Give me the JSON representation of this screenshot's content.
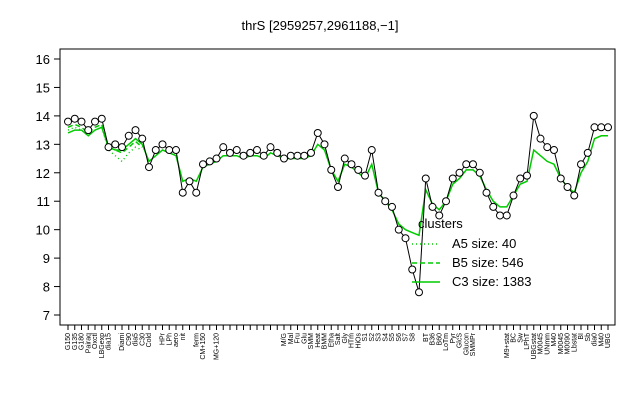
{
  "chart_data": {
    "type": "line",
    "title": "thrS [2959257,2961188,−1]",
    "categories": [
      "G150",
      "G135",
      "G180",
      "Pairaq",
      "Oxctl",
      "LBGexp",
      "dia15",
      null,
      "Diami",
      "C90",
      "dia5",
      "C30",
      "Cold",
      null,
      "HPr",
      "LPh",
      "aero",
      "nit",
      null,
      "ferm",
      "CM+150",
      null,
      "MG+120",
      null,
      null,
      null,
      null,
      null,
      null,
      null,
      null,
      null,
      "M/G",
      "Mal",
      "Fru",
      "Glu",
      "SMM",
      "Heat",
      "BMM",
      "Etha",
      "Salt",
      "Gly",
      "HTm",
      "HiOs",
      "S1",
      "S2",
      "S3",
      "S4",
      "S5",
      "S6",
      "S7",
      "S8",
      null,
      "BT",
      "B36",
      "B60",
      "LoTm",
      "Pyr",
      "GlcS",
      "Glucon",
      "SMMPr",
      null,
      null,
      null,
      null,
      "M9+stat",
      "BC",
      "Sw",
      "LPhT",
      "UBGstat",
      "M0045",
      "UNmm",
      "M40",
      "M0045",
      "M0090",
      "Lbstat",
      "BI",
      "Sb",
      "dia0",
      "M40",
      "UBG"
    ],
    "values": [
      13.8,
      13.9,
      13.8,
      13.5,
      13.8,
      13.9,
      12.9,
      13.0,
      12.9,
      13.3,
      13.5,
      13.2,
      12.2,
      12.8,
      13.0,
      12.8,
      12.8,
      11.3,
      11.7,
      11.3,
      12.3,
      12.4,
      12.5,
      12.9,
      12.7,
      12.8,
      12.6,
      12.7,
      12.8,
      12.6,
      12.9,
      12.7,
      12.5,
      12.6,
      12.6,
      12.6,
      12.7,
      13.4,
      13.0,
      12.1,
      11.5,
      12.5,
      12.3,
      12.1,
      11.9,
      12.8,
      11.3,
      11.0,
      10.8,
      10.0,
      9.7,
      8.6,
      7.8,
      11.8,
      10.8,
      10.5,
      11.0,
      11.8,
      12.0,
      12.3,
      12.3,
      12.0,
      11.3,
      10.8,
      10.5,
      10.5,
      11.2,
      11.8,
      11.9,
      14.0,
      13.2,
      12.9,
      12.8,
      11.8,
      11.5,
      11.2,
      12.3,
      12.7,
      13.6,
      13.6,
      13.6
    ],
    "series": [
      {
        "name": "A5 size: 40",
        "color": "#00cc00",
        "style": "dotted",
        "values": [
          13.5,
          13.6,
          13.5,
          13.3,
          13.5,
          13.6,
          12.8,
          12.6,
          12.4,
          12.7,
          12.9,
          12.8,
          null,
          null,
          null,
          null,
          null,
          null,
          null,
          null,
          null,
          null,
          null,
          null,
          null,
          null,
          null,
          null,
          null,
          null,
          null,
          null,
          null,
          null,
          null,
          null,
          null,
          null,
          null,
          null,
          null,
          null,
          null,
          null,
          null,
          null,
          null,
          null,
          null,
          null,
          null,
          null,
          null,
          null,
          null,
          null,
          null,
          null,
          null,
          null,
          null,
          null,
          null,
          null,
          null,
          null,
          null,
          null,
          null,
          null,
          null,
          null,
          null,
          null,
          null,
          null,
          null,
          null,
          null,
          null,
          null
        ]
      },
      {
        "name": "B5 size: 546",
        "color": "#00cc00",
        "style": "dashed",
        "values": [
          13.6,
          13.7,
          13.6,
          13.4,
          13.6,
          13.7,
          12.9,
          12.8,
          12.7,
          12.9,
          13.1,
          12.9,
          null,
          null,
          null,
          null,
          null,
          null,
          null,
          null,
          null,
          null,
          null,
          null,
          null,
          null,
          null,
          null,
          null,
          null,
          null,
          null,
          null,
          null,
          null,
          null,
          null,
          null,
          null,
          null,
          null,
          null,
          null,
          null,
          null,
          null,
          null,
          null,
          null,
          null,
          null,
          null,
          null,
          null,
          null,
          null,
          null,
          null,
          null,
          null,
          null,
          null,
          null,
          null,
          null,
          null,
          null,
          null,
          null,
          null,
          null,
          null,
          null,
          null,
          null,
          null,
          null,
          null,
          null,
          null,
          null
        ]
      },
      {
        "name": "C3 size: 1383",
        "color": "#00cc00",
        "style": "solid",
        "values": [
          13.4,
          13.5,
          13.5,
          13.3,
          13.5,
          13.6,
          12.9,
          12.8,
          12.8,
          13.0,
          13.2,
          13.0,
          12.4,
          12.6,
          12.8,
          12.7,
          12.6,
          11.7,
          11.8,
          11.7,
          12.2,
          12.3,
          12.4,
          12.6,
          12.6,
          12.6,
          12.5,
          12.6,
          12.6,
          12.5,
          12.7,
          12.6,
          12.5,
          12.5,
          12.5,
          12.5,
          12.6,
          13.0,
          12.8,
          12.1,
          11.7,
          12.3,
          12.2,
          12.0,
          11.8,
          12.3,
          11.3,
          11.0,
          10.7,
          10.2,
          10.0,
          9.9,
          9.8,
          11.4,
          10.9,
          10.7,
          11.0,
          11.6,
          11.8,
          12.1,
          12.1,
          11.9,
          11.4,
          11.0,
          10.8,
          10.8,
          11.2,
          11.6,
          11.7,
          12.8,
          12.6,
          12.4,
          12.3,
          11.8,
          11.5,
          11.3,
          12.0,
          12.4,
          13.2,
          13.3,
          13.3
        ]
      }
    ],
    "legend_title": "clusters",
    "ylim": [
      7,
      16
    ],
    "yticks": [
      7,
      8,
      9,
      10,
      11,
      12,
      13,
      14,
      15,
      16
    ]
  }
}
